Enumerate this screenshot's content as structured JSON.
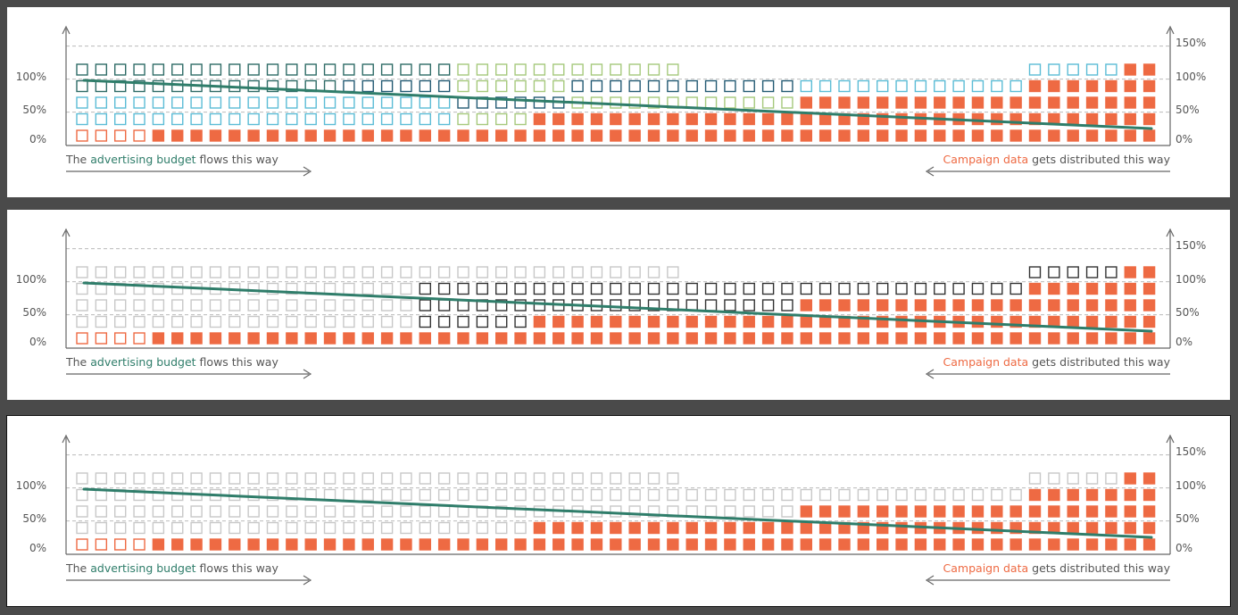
{
  "colors": {
    "orange": "#ee6a43",
    "dark_teal": "#2e6b66",
    "light_blue": "#5bbcd6",
    "light_green": "#a6c97c",
    "navy": "#235a73",
    "black": "#333333",
    "ghost": "#c8c8c8",
    "trend": "#2f7d6a",
    "axis": "#666666",
    "grid": "#bbbbbb"
  },
  "axis": {
    "left_ticks": [
      "0%",
      "50%",
      "100%"
    ],
    "right_ticks": [
      "0%",
      "50%",
      "100%",
      "150%"
    ]
  },
  "captions": {
    "left_prefix": "The ",
    "left_highlight": "advertising budget",
    "left_suffix": " flows this way",
    "right_highlight": "Campaign data",
    "right_suffix": " gets distributed this way"
  },
  "chart_data": {
    "type": "bar",
    "columns": 57,
    "column_heights": [
      5,
      5,
      5,
      5,
      5,
      5,
      5,
      5,
      5,
      5,
      5,
      5,
      5,
      5,
      5,
      5,
      5,
      5,
      5,
      5,
      5,
      5,
      5,
      5,
      5,
      5,
      5,
      5,
      5,
      5,
      5,
      5,
      4,
      4,
      4,
      4,
      4,
      4,
      4,
      4,
      4,
      4,
      4,
      4,
      4,
      4,
      4,
      4,
      4,
      4,
      5,
      5,
      5,
      5,
      5,
      5,
      5
    ],
    "filled_per_column": [
      0,
      0,
      0,
      0,
      1,
      1,
      1,
      1,
      1,
      1,
      1,
      1,
      1,
      1,
      1,
      1,
      1,
      1,
      1,
      1,
      1,
      1,
      1,
      1,
      2,
      2,
      2,
      2,
      2,
      2,
      2,
      2,
      2,
      2,
      2,
      2,
      2,
      2,
      3,
      3,
      3,
      3,
      3,
      3,
      3,
      3,
      3,
      3,
      3,
      3,
      4,
      4,
      4,
      4,
      4,
      5,
      5
    ],
    "trend_line": {
      "start": 100,
      "end": 25
    },
    "panels": [
      {
        "name": "colored",
        "mode": "colored"
      },
      {
        "name": "highlight",
        "mode": "highlight"
      },
      {
        "name": "ghost",
        "mode": "ghost"
      }
    ]
  }
}
